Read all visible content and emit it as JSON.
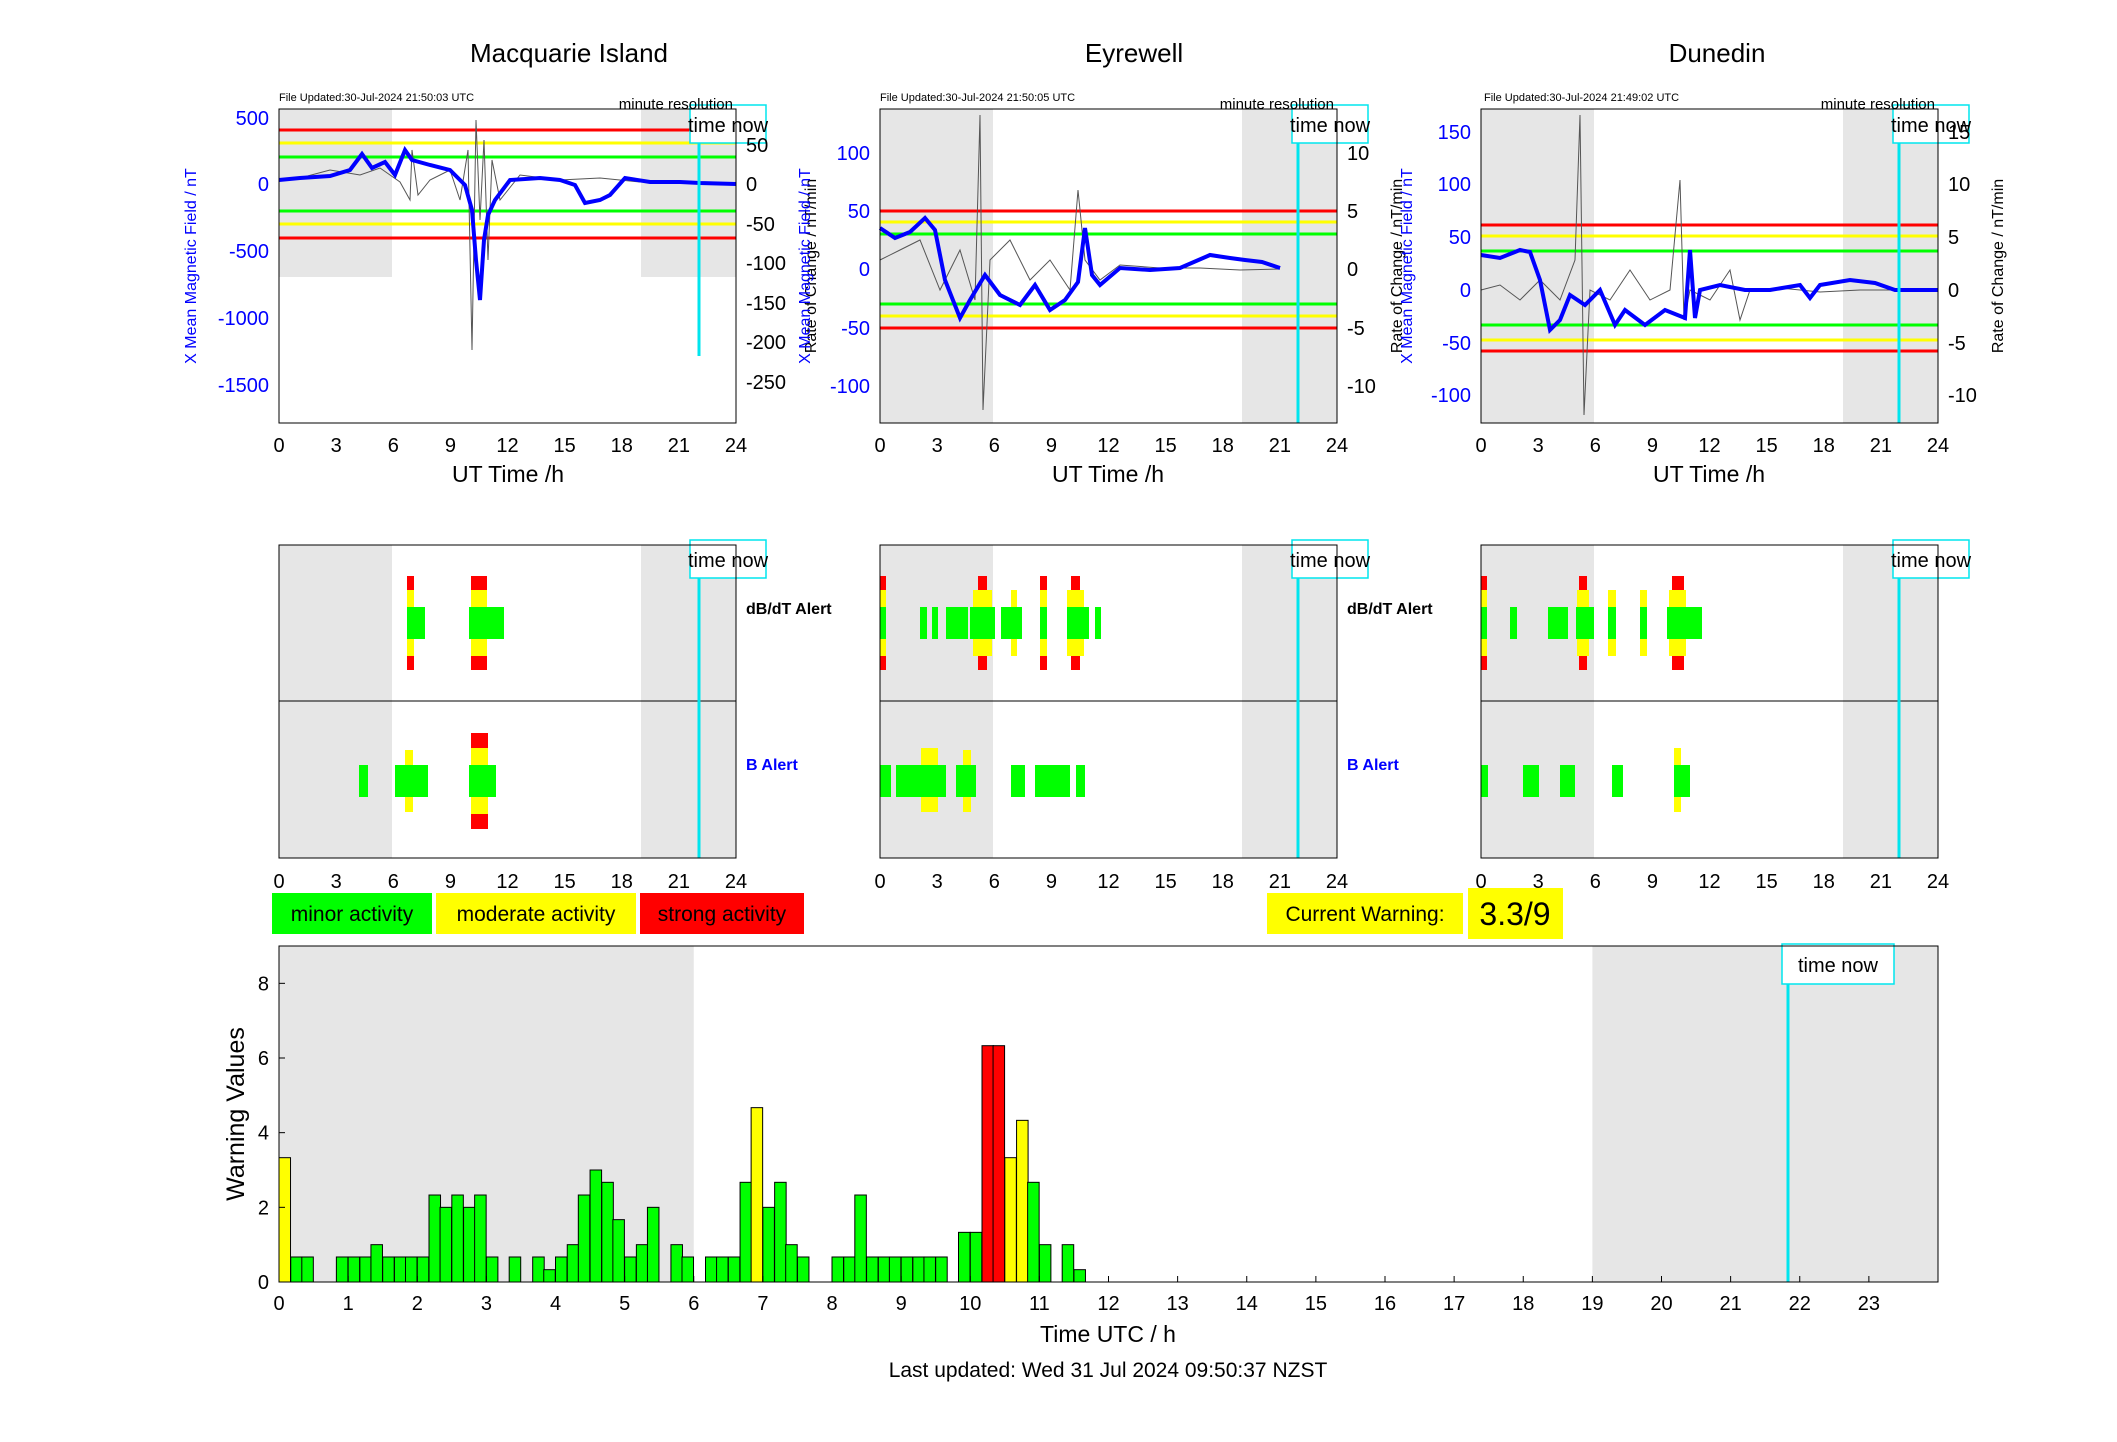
{
  "colors": {
    "red": "#ff0000",
    "yellow": "#ffff00",
    "green": "#00ff00",
    "blue": "#0000ff",
    "cyan": "#00e5ee",
    "shade": "#e6e6e6"
  },
  "time_now_label": "time now",
  "minute_resolution": "minute resolution",
  "ut_time_label": "UT Time /h",
  "stations": [
    {
      "name": "Macquarie Island",
      "updated": "File Updated:30-Jul-2024 21:50:03 UTC",
      "ylabel_left": "X Mean Magnetic Field / nT",
      "ylabel_right": "Rate of Change / nT/min",
      "left_ticks": [
        "500",
        "0",
        "-500",
        "-1000",
        "-1500"
      ],
      "right_ticks": [
        "50",
        "0",
        "-50",
        "-100",
        "-150",
        "-200",
        "-250"
      ]
    },
    {
      "name": "Eyrewell",
      "updated": "File Updated:30-Jul-2024 21:50:05 UTC",
      "ylabel_left": "X Mean Magnetic Field / nT",
      "ylabel_right": "Rate of Change / nT/min",
      "left_ticks": [
        "100",
        "50",
        "0",
        "-50",
        "-100"
      ],
      "right_ticks": [
        "10",
        "5",
        "0",
        "-5",
        "-10"
      ]
    },
    {
      "name": "Dunedin",
      "updated": "File Updated:30-Jul-2024 21:49:02 UTC",
      "ylabel_left": "X Mean Magnetic Field / nT",
      "ylabel_right": "Rate of Change / nT/min",
      "left_ticks": [
        "150",
        "100",
        "50",
        "0",
        "-50",
        "-100"
      ],
      "right_ticks": [
        "15",
        "10",
        "5",
        "0",
        "-5",
        "-10"
      ]
    }
  ],
  "hour_ticks": [
    "0",
    "3",
    "6",
    "9",
    "12",
    "15",
    "18",
    "21",
    "24"
  ],
  "alerts": {
    "dbdt_label": "dB/dT Alert",
    "b_label": "B Alert"
  },
  "legend": {
    "minor": "minor activity",
    "moderate": "moderate activity",
    "strong": "strong activity"
  },
  "current_warning": {
    "label": "Current Warning:",
    "value": "3.3/9"
  },
  "chart_data": {
    "type": "bar",
    "xlabel": "Time UTC / h",
    "ylabel": "Warning Values",
    "ylim": [
      0,
      9
    ],
    "xlim": [
      0,
      24
    ],
    "x_ticks": [
      "0",
      "1",
      "2",
      "3",
      "4",
      "5",
      "6",
      "7",
      "8",
      "9",
      "10",
      "11",
      "12",
      "13",
      "14",
      "15",
      "16",
      "17",
      "18",
      "19",
      "20",
      "21",
      "22",
      "23"
    ],
    "y_ticks": [
      "0",
      "2",
      "4",
      "6",
      "8"
    ],
    "shaded_hours": [
      [
        0,
        6
      ],
      [
        19,
        24
      ]
    ],
    "time_now_hour": 21.83,
    "bar_width_h": 0.1667,
    "bars": [
      {
        "t": 0.0,
        "v": 3.33,
        "level": "moderate"
      },
      {
        "t": 0.17,
        "v": 0.67,
        "level": "minor"
      },
      {
        "t": 0.33,
        "v": 0.67,
        "level": "minor"
      },
      {
        "t": 0.83,
        "v": 0.67,
        "level": "minor"
      },
      {
        "t": 1.0,
        "v": 0.67,
        "level": "minor"
      },
      {
        "t": 1.17,
        "v": 0.67,
        "level": "minor"
      },
      {
        "t": 1.33,
        "v": 1.0,
        "level": "minor"
      },
      {
        "t": 1.5,
        "v": 0.67,
        "level": "minor"
      },
      {
        "t": 1.67,
        "v": 0.67,
        "level": "minor"
      },
      {
        "t": 1.83,
        "v": 0.67,
        "level": "minor"
      },
      {
        "t": 2.0,
        "v": 0.67,
        "level": "minor"
      },
      {
        "t": 2.17,
        "v": 2.33,
        "level": "minor"
      },
      {
        "t": 2.33,
        "v": 2.0,
        "level": "minor"
      },
      {
        "t": 2.5,
        "v": 2.33,
        "level": "minor"
      },
      {
        "t": 2.67,
        "v": 2.0,
        "level": "minor"
      },
      {
        "t": 2.83,
        "v": 2.33,
        "level": "minor"
      },
      {
        "t": 3.0,
        "v": 0.67,
        "level": "minor"
      },
      {
        "t": 3.33,
        "v": 0.67,
        "level": "minor"
      },
      {
        "t": 3.67,
        "v": 0.67,
        "level": "minor"
      },
      {
        "t": 3.83,
        "v": 0.33,
        "level": "minor"
      },
      {
        "t": 4.0,
        "v": 0.67,
        "level": "minor"
      },
      {
        "t": 4.17,
        "v": 1.0,
        "level": "minor"
      },
      {
        "t": 4.33,
        "v": 2.33,
        "level": "minor"
      },
      {
        "t": 4.5,
        "v": 3.0,
        "level": "minor"
      },
      {
        "t": 4.67,
        "v": 2.67,
        "level": "minor"
      },
      {
        "t": 4.83,
        "v": 1.67,
        "level": "minor"
      },
      {
        "t": 5.0,
        "v": 0.67,
        "level": "minor"
      },
      {
        "t": 5.17,
        "v": 1.0,
        "level": "minor"
      },
      {
        "t": 5.33,
        "v": 2.0,
        "level": "minor"
      },
      {
        "t": 5.67,
        "v": 1.0,
        "level": "minor"
      },
      {
        "t": 5.83,
        "v": 0.67,
        "level": "minor"
      },
      {
        "t": 6.17,
        "v": 0.67,
        "level": "minor"
      },
      {
        "t": 6.33,
        "v": 0.67,
        "level": "minor"
      },
      {
        "t": 6.5,
        "v": 0.67,
        "level": "minor"
      },
      {
        "t": 6.67,
        "v": 2.67,
        "level": "minor"
      },
      {
        "t": 6.83,
        "v": 4.67,
        "level": "moderate"
      },
      {
        "t": 7.0,
        "v": 2.0,
        "level": "minor"
      },
      {
        "t": 7.17,
        "v": 2.67,
        "level": "minor"
      },
      {
        "t": 7.33,
        "v": 1.0,
        "level": "minor"
      },
      {
        "t": 7.5,
        "v": 0.67,
        "level": "minor"
      },
      {
        "t": 8.0,
        "v": 0.67,
        "level": "minor"
      },
      {
        "t": 8.17,
        "v": 0.67,
        "level": "minor"
      },
      {
        "t": 8.33,
        "v": 2.33,
        "level": "minor"
      },
      {
        "t": 8.5,
        "v": 0.67,
        "level": "minor"
      },
      {
        "t": 8.67,
        "v": 0.67,
        "level": "minor"
      },
      {
        "t": 8.83,
        "v": 0.67,
        "level": "minor"
      },
      {
        "t": 9.0,
        "v": 0.67,
        "level": "minor"
      },
      {
        "t": 9.17,
        "v": 0.67,
        "level": "minor"
      },
      {
        "t": 9.33,
        "v": 0.67,
        "level": "minor"
      },
      {
        "t": 9.5,
        "v": 0.67,
        "level": "minor"
      },
      {
        "t": 9.83,
        "v": 1.33,
        "level": "minor"
      },
      {
        "t": 10.0,
        "v": 1.33,
        "level": "minor"
      },
      {
        "t": 10.17,
        "v": 6.33,
        "level": "strong"
      },
      {
        "t": 10.33,
        "v": 6.33,
        "level": "strong"
      },
      {
        "t": 10.5,
        "v": 3.33,
        "level": "moderate"
      },
      {
        "t": 10.67,
        "v": 4.33,
        "level": "moderate"
      },
      {
        "t": 10.83,
        "v": 2.67,
        "level": "minor"
      },
      {
        "t": 11.0,
        "v": 1.0,
        "level": "minor"
      },
      {
        "t": 11.33,
        "v": 1.0,
        "level": "minor"
      },
      {
        "t": 11.5,
        "v": 0.33,
        "level": "minor"
      }
    ]
  },
  "footer": "Last updated: Wed 31 Jul 2024 09:50:37 NZST"
}
